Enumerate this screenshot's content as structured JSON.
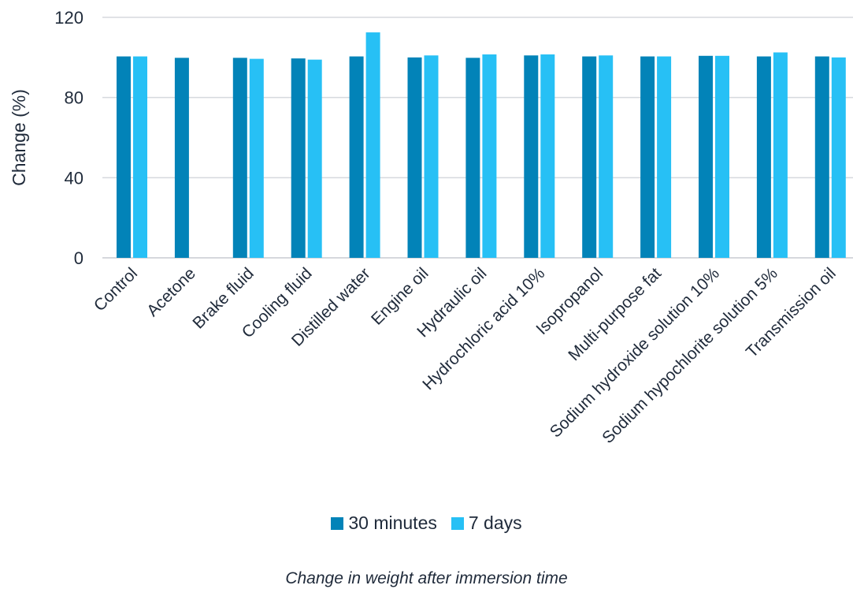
{
  "chart_data": {
    "type": "bar",
    "categories": [
      "Control",
      "Acetone",
      "Brake fluid",
      "Cooling fluid",
      "Distilled water",
      "Engine oil",
      "Hydraulic oil",
      "Hydrochloric acid 10%",
      "Isopropanol",
      "Multi-purpose fat",
      "Sodium hydroxide solution 10%",
      "Sodium hypochlorite solution 5%",
      "Transmission oil"
    ],
    "series": [
      {
        "name": "30 minutes",
        "color": "#0283b8",
        "values": [
          100.5,
          99.8,
          99.8,
          99.5,
          100.5,
          100,
          99.8,
          101,
          100.5,
          100.5,
          100.8,
          100.5,
          100.5
        ]
      },
      {
        "name": "7 days",
        "color": "#27c0f5",
        "values": [
          100.5,
          null,
          99.3,
          98.9,
          112.5,
          101,
          101.5,
          101.5,
          101,
          100.5,
          100.8,
          102.5,
          100
        ]
      }
    ],
    "ylabel": "Change (%)",
    "yticks": [
      0,
      40,
      80,
      120
    ],
    "ylim": [
      0,
      120
    ],
    "grid": true,
    "legend_position": "bottom",
    "caption": "Change in weight after immersion time"
  }
}
